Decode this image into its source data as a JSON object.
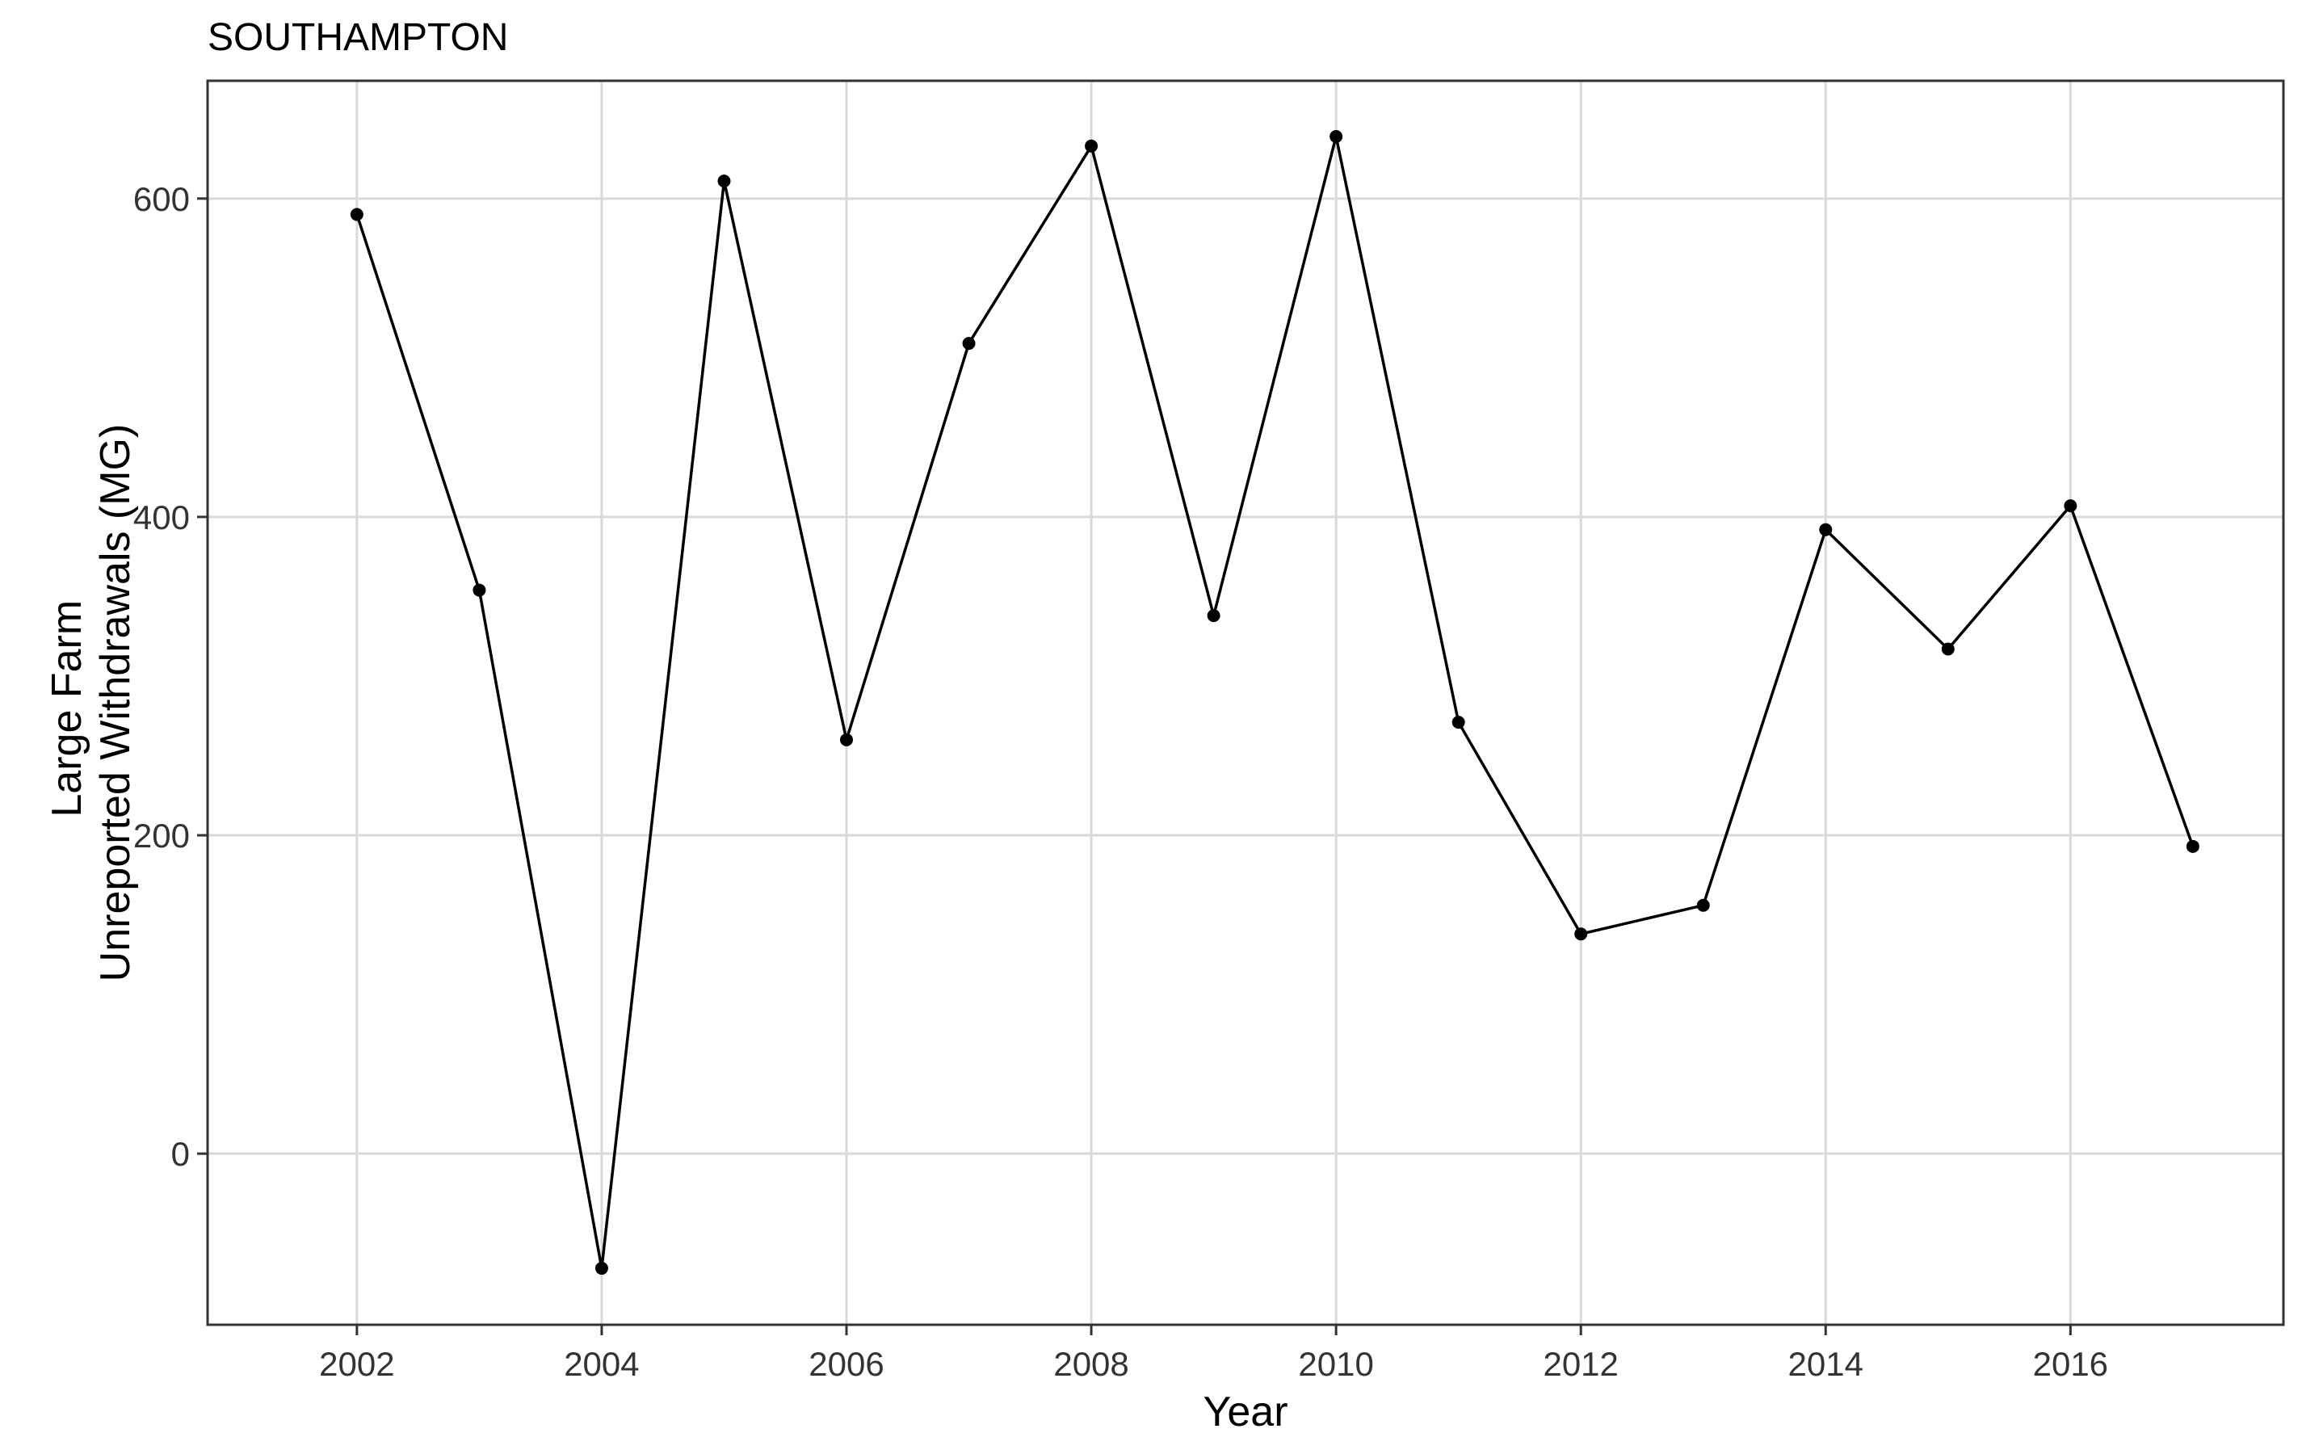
{
  "chart_data": {
    "type": "line",
    "title": "SOUTHAMPTON",
    "xlabel": "Year",
    "ylabel": [
      "Large Farm",
      "Unreported Withdrawals (MG)"
    ],
    "x_ticks": [
      2002,
      2004,
      2006,
      2008,
      2010,
      2012,
      2014,
      2016
    ],
    "x_tick_labels": [
      "2002",
      "2004",
      "2006",
      "2008",
      "2010",
      "2012",
      "2014",
      "2016"
    ],
    "y_ticks": [
      0,
      200,
      400,
      600
    ],
    "y_tick_labels": [
      "0",
      "200",
      "400",
      "600"
    ],
    "xlim": [
      2000.78,
      2017.74
    ],
    "ylim": [
      -107.5,
      674
    ],
    "grid": true,
    "legend": "none",
    "series": [
      {
        "x": [
          2002,
          2003,
          2004,
          2005,
          2006,
          2007,
          2008,
          2009,
          2010,
          2011,
          2012,
          2013,
          2014,
          2015,
          2016,
          2017
        ],
        "y": [
          590,
          354,
          -72,
          611,
          260,
          509,
          633,
          338,
          639,
          271,
          138,
          156,
          392,
          317,
          407,
          193
        ]
      }
    ]
  },
  "colors": {
    "line": "#000000",
    "point": "#000000",
    "grid": "#d9d9d9",
    "panel_border": "#333333",
    "background": "#ffffff"
  }
}
